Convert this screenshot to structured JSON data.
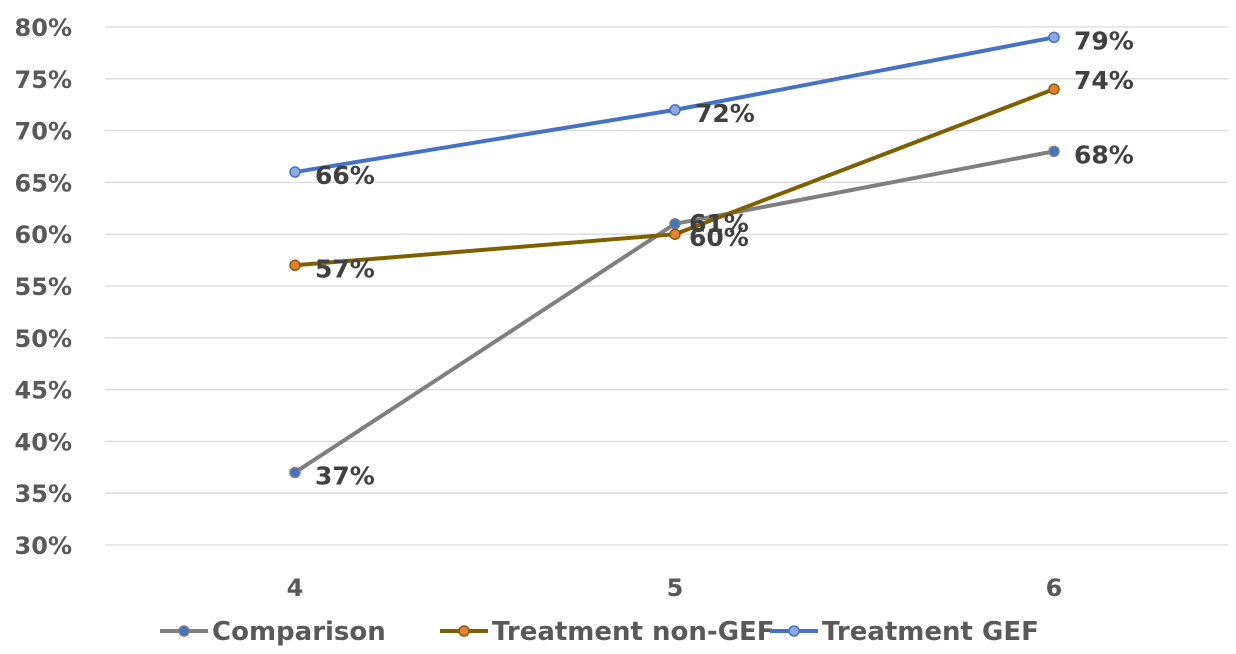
{
  "chart_data": {
    "type": "line",
    "title": "",
    "xlabel": "",
    "ylabel": "",
    "x": [
      "4",
      "5",
      "6"
    ],
    "ylim": [
      0.3,
      0.8
    ],
    "y_ticks": [
      "30%",
      "35%",
      "40%",
      "45%",
      "50%",
      "55%",
      "60%",
      "65%",
      "70%",
      "75%",
      "80%"
    ],
    "grid": true,
    "legend_position": "bottom",
    "series": [
      {
        "name": "Comparison",
        "values": [
          0.37,
          0.61,
          0.68
        ],
        "labels": [
          "37%",
          "61%",
          "68%"
        ],
        "line_color": "#7f7f7f",
        "marker_color": "#4472c4"
      },
      {
        "name": "Treatment non-GEF",
        "values": [
          0.57,
          0.6,
          0.74
        ],
        "labels": [
          "57%",
          "60%",
          "74%"
        ],
        "line_color": "#7f6000",
        "marker_color": "#ed7d31"
      },
      {
        "name": "Treatment GEF",
        "values": [
          0.66,
          0.72,
          0.79
        ],
        "labels": [
          "66%",
          "72%",
          "79%"
        ],
        "line_color": "#4472c4",
        "marker_color": "#8faadc"
      }
    ]
  }
}
